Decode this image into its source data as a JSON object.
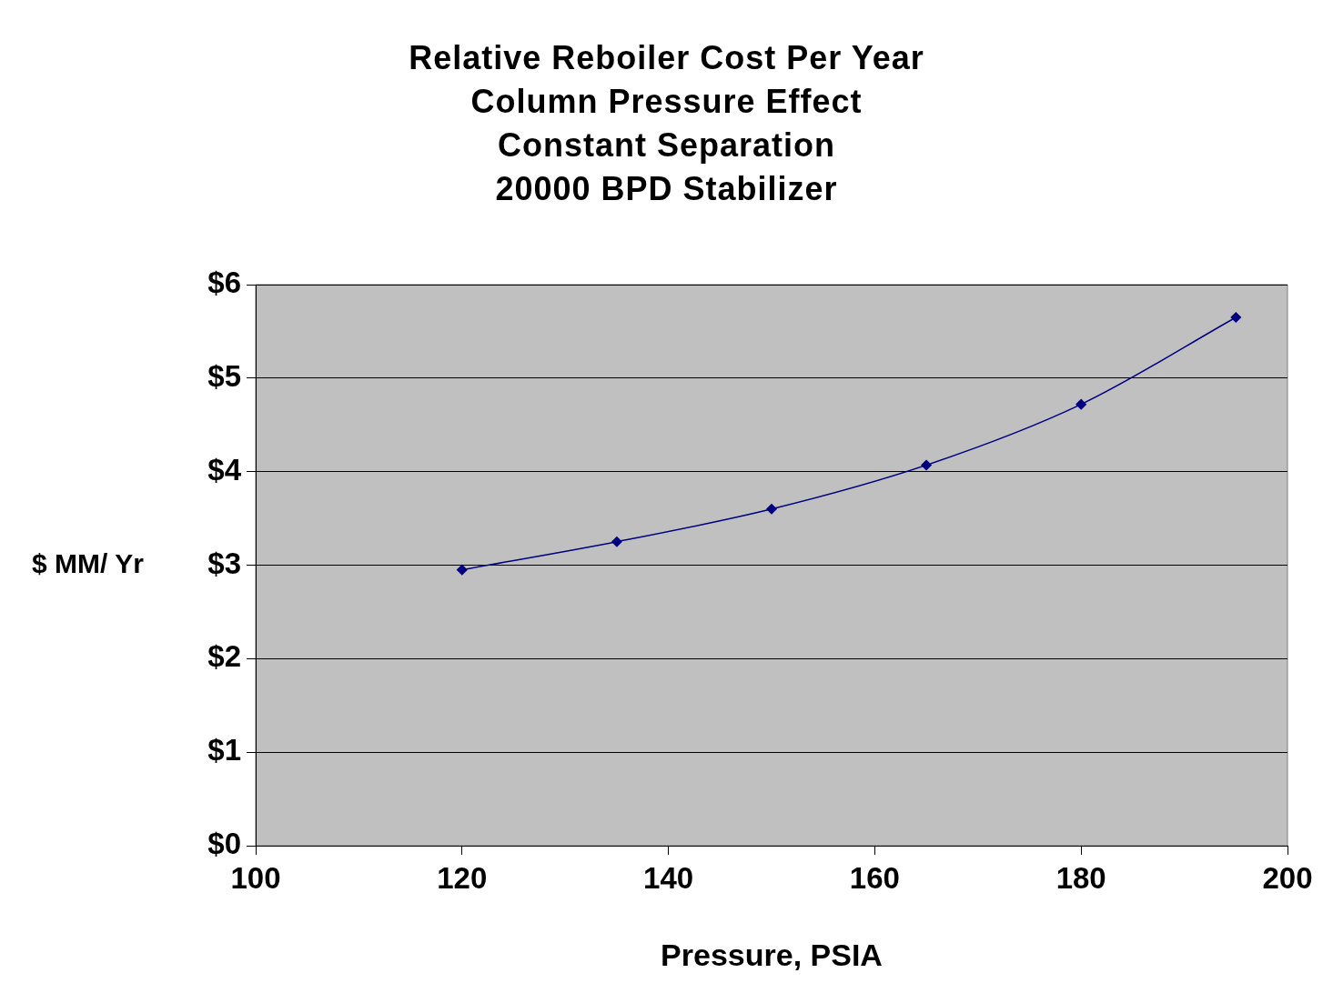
{
  "chart_data": {
    "type": "line",
    "title": "Relative Reboiler Cost Per Year\nColumn Pressure Effect\nConstant Separation\n20000 BPD Stabilizer",
    "xlabel": "Pressure, PSIA",
    "ylabel": "$ MM/ Yr",
    "x": [
      120,
      135,
      150,
      165,
      180,
      195
    ],
    "series": [
      {
        "color": "#000080",
        "values": [
          2.95,
          3.25,
          3.6,
          4.07,
          4.72,
          5.65
        ]
      }
    ],
    "xlim": [
      100,
      200
    ],
    "xticks": [
      100,
      120,
      140,
      160,
      180,
      200
    ],
    "ylim": [
      0,
      6
    ],
    "yticks": [
      {
        "value": 0,
        "label": "$0"
      },
      {
        "value": 1,
        "label": "$1"
      },
      {
        "value": 2,
        "label": "$2"
      },
      {
        "value": 3,
        "label": "$3"
      },
      {
        "value": 4,
        "label": "$4"
      },
      {
        "value": 5,
        "label": "$5"
      },
      {
        "value": 6,
        "label": "$6"
      }
    ],
    "grid": "y",
    "legend": false,
    "marker": "diamond",
    "line_style": "solid"
  }
}
